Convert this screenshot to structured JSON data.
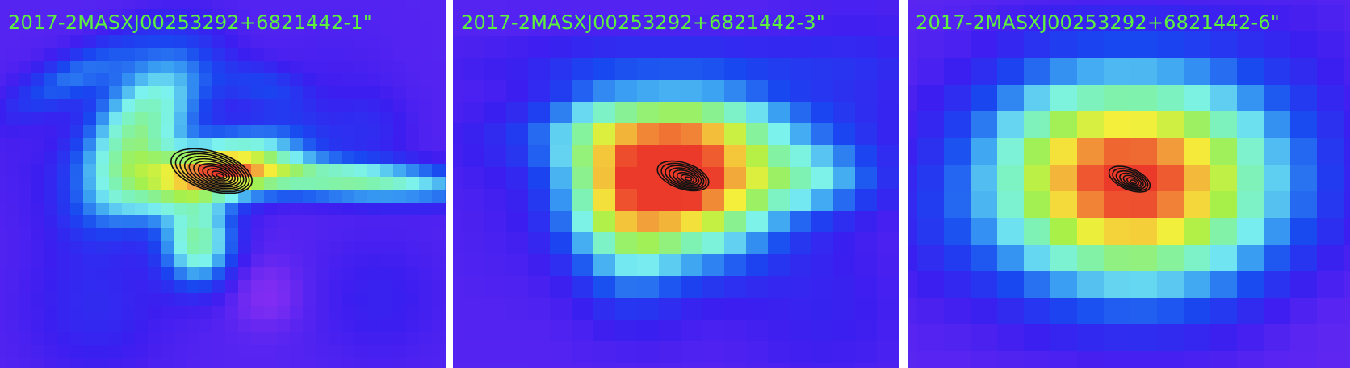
{
  "label_color": "#5df03e",
  "contour_color": "#111111",
  "panels": [
    {
      "label": "2017-2MASXJ00253292+6821442-1\""
    },
    {
      "label": "2017-2MASXJ00253292+6821442-3\""
    },
    {
      "label": "2017-2MASXJ00253292+6821442-6\""
    }
  ],
  "colormap": [
    "#a72cf5",
    "#7a2cf2",
    "#3c1ef0",
    "#1848f0",
    "#3aa0f2",
    "#7cf2f0",
    "#7ef2b0",
    "#a6f04a",
    "#f5ef3a",
    "#f29a3a",
    "#ec3a2a"
  ]
}
